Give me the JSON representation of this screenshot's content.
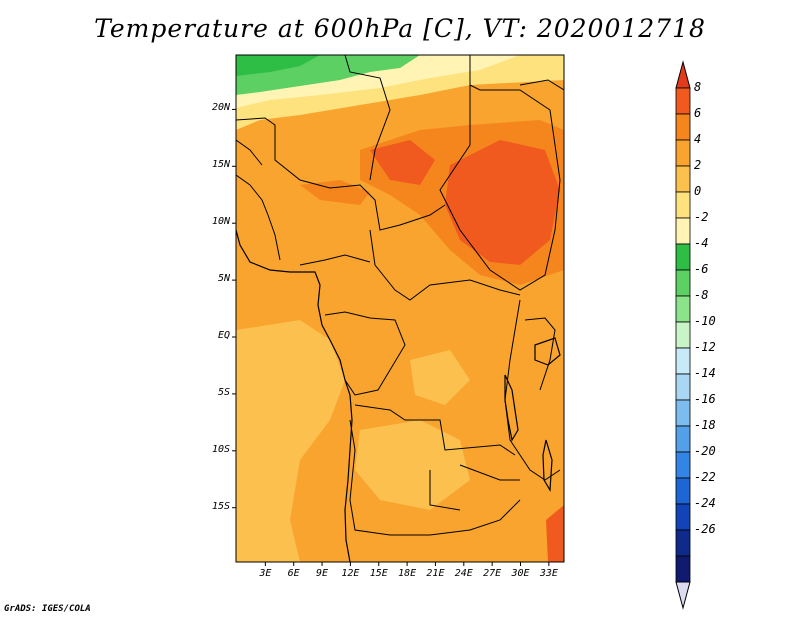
{
  "title": "Temperature at 600hPa [C], VT: 2020012718",
  "credit": "GrADS: IGES/COLA",
  "map": {
    "lat_ticks": [
      {
        "label": "20N",
        "lat": 20
      },
      {
        "label": "15N",
        "lat": 15
      },
      {
        "label": "10N",
        "lat": 10
      },
      {
        "label": "5N",
        "lat": 5
      },
      {
        "label": "EQ",
        "lat": 0
      },
      {
        "label": "5S",
        "lat": -5
      },
      {
        "label": "10S",
        "lat": -10
      },
      {
        "label": "15S",
        "lat": -15
      }
    ],
    "lon_ticks": [
      {
        "label": "3E",
        "lon": 3
      },
      {
        "label": "6E",
        "lon": 6
      },
      {
        "label": "9E",
        "lon": 9
      },
      {
        "label": "12E",
        "lon": 12
      },
      {
        "label": "15E",
        "lon": 15
      },
      {
        "label": "18E",
        "lon": 18
      },
      {
        "label": "21E",
        "lon": 21
      },
      {
        "label": "24E",
        "lon": 24
      },
      {
        "label": "27E",
        "lon": 27
      },
      {
        "label": "30E",
        "lon": 30
      },
      {
        "label": "33E",
        "lon": 33
      }
    ]
  },
  "colorbar": {
    "labels": [
      "8",
      "6",
      "4",
      "2",
      "0",
      "-2",
      "-4",
      "-6",
      "-8",
      "-10",
      "-12",
      "-14",
      "-16",
      "-18",
      "-20",
      "-22",
      "-24",
      "-26"
    ],
    "colors": [
      "#e23a1a",
      "#f05a1e",
      "#f5861e",
      "#f8a42e",
      "#fbc04e",
      "#fde27e",
      "#fff4b4",
      "#2ebd45",
      "#5cd063",
      "#8be38a",
      "#c8f5c8",
      "#c7eaf8",
      "#a8d6f4",
      "#7cbcef",
      "#53a0e9",
      "#3285e4",
      "#1d66d4",
      "#1244b8",
      "#0f2a8a",
      "#101a6e",
      "#dcdcf0"
    ]
  },
  "field_colors": {
    "base": "#f8a42e",
    "light": "#fbc04e",
    "pale": "#fde27e",
    "paler": "#fff4b4",
    "warm": "#f5861e",
    "hot": "#f05a1e",
    "green": "#5cd063",
    "dark_green": "#2ebd45"
  }
}
